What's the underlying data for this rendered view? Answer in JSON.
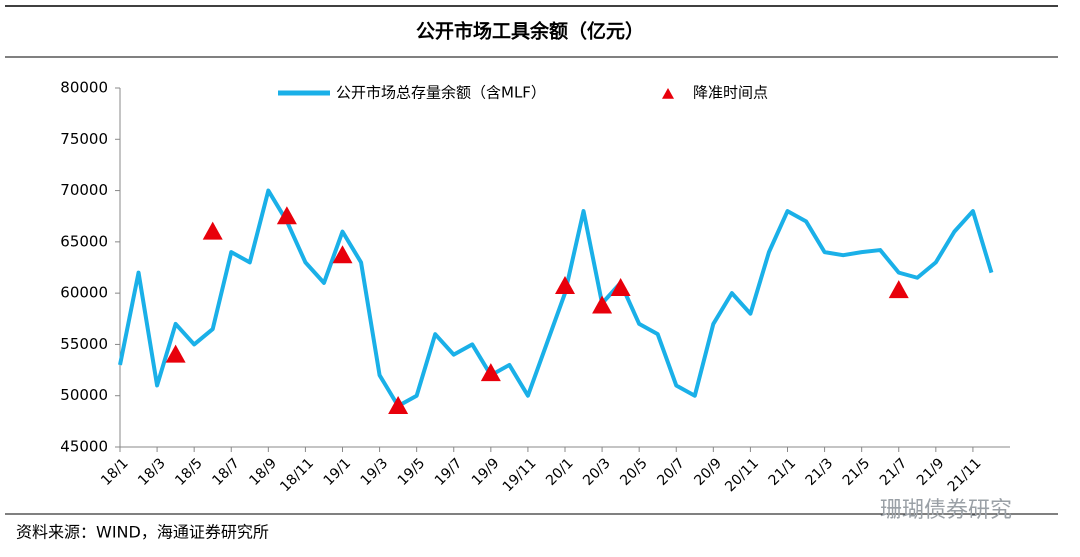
{
  "chart_data": {
    "type": "line",
    "title": "公开市场工具余额（亿元）",
    "categories": [
      "18/1",
      null,
      "18/3",
      null,
      "18/5",
      null,
      "18/7",
      null,
      "18/9",
      null,
      "18/11",
      null,
      "19/1",
      null,
      "19/3",
      null,
      "19/5",
      null,
      "19/7",
      null,
      "19/9",
      null,
      "19/11",
      null,
      "20/1",
      null,
      "20/3",
      null,
      "20/5",
      null,
      "20/7",
      null,
      "20/9",
      null,
      "20/11",
      null,
      "21/1",
      null,
      "21/3",
      null,
      "21/5",
      null,
      "21/7",
      null,
      "21/9",
      null,
      "21/11",
      null
    ],
    "series": [
      {
        "name": "公开市场总存量余额（含MLF）",
        "type": "line",
        "color": "#1ab0e8",
        "values": [
          53000,
          62000,
          51000,
          57000,
          55000,
          56500,
          64000,
          63000,
          70000,
          67000,
          63000,
          61000,
          66000,
          63000,
          52000,
          49000,
          50000,
          56000,
          54000,
          55000,
          52000,
          53000,
          50000,
          55000,
          60000,
          68000,
          59000,
          61000,
          57000,
          56000,
          51000,
          50000,
          57000,
          60000,
          58000,
          64000,
          68000,
          67000,
          64000,
          63700,
          64000,
          64200,
          62000,
          61500,
          63000,
          66000,
          68000,
          62000
        ]
      },
      {
        "name": "降准时间点",
        "type": "scatter",
        "color": "#e8000b",
        "values": [
          null,
          null,
          null,
          54000,
          null,
          66000,
          null,
          null,
          null,
          67500,
          null,
          null,
          63700,
          null,
          null,
          49000,
          null,
          null,
          null,
          null,
          52200,
          null,
          null,
          null,
          60700,
          null,
          58800,
          60500,
          null,
          null,
          null,
          null,
          null,
          null,
          null,
          null,
          null,
          null,
          null,
          null,
          null,
          null,
          60300,
          null,
          null,
          null,
          null,
          null
        ]
      }
    ],
    "ylim": [
      45000,
      80000
    ],
    "yticks": [
      45000,
      50000,
      55000,
      60000,
      65000,
      70000,
      75000,
      80000
    ]
  },
  "source": "资料来源：WIND，海通证券研究所",
  "watermark": "珊瑚债券研究"
}
